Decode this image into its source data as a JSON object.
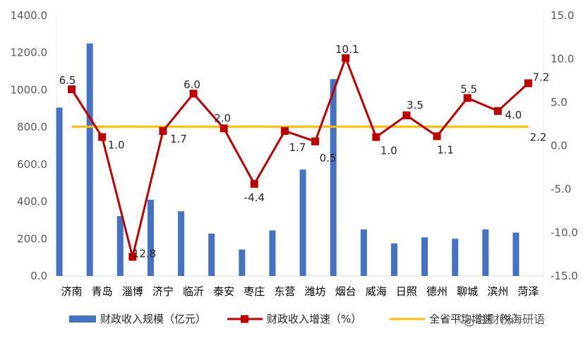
{
  "chart_data": {
    "type": "bar+line",
    "categories": [
      "济南",
      "青岛",
      "淄博",
      "济宁",
      "临沂",
      "泰安",
      "枣庄",
      "东营",
      "潍坊",
      "烟台",
      "威海",
      "日照",
      "德州",
      "聊城",
      "滨州",
      "菏泽"
    ],
    "series": [
      {
        "name": "财政收入规模（亿元）",
        "type": "bar",
        "axis": "left",
        "color": "#4472C4",
        "values": [
          905,
          1250,
          322,
          410,
          348,
          228,
          142,
          245,
          572,
          1058,
          250,
          175,
          208,
          200,
          250,
          233
        ]
      },
      {
        "name": "财政收入增速（%）",
        "type": "line",
        "axis": "right",
        "color": "#C00000",
        "values": [
          6.5,
          1.0,
          -12.8,
          1.7,
          6.0,
          2.0,
          -4.4,
          1.7,
          0.5,
          10.1,
          1.0,
          3.5,
          1.1,
          5.5,
          4.0,
          7.2
        ],
        "labels": [
          "6.5",
          "1.0",
          "-12.8",
          "1.7",
          "6.0",
          "2.0",
          "-4.4",
          "1.7",
          "0.5",
          "10.1",
          "1.0",
          "3.5",
          "1.1",
          "5.5",
          "4.0",
          "7.2"
        ]
      },
      {
        "name": "全省平均增速（%）",
        "type": "line",
        "axis": "right",
        "color": "#FFC000",
        "values": [
          2.2,
          2.2,
          2.2,
          2.2,
          2.2,
          2.2,
          2.2,
          2.2,
          2.2,
          2.2,
          2.2,
          2.2,
          2.2,
          2.2,
          2.2,
          2.2
        ],
        "end_label": "2.2"
      }
    ],
    "left_axis": {
      "min": 0,
      "max": 1400,
      "step": 200,
      "tick_labels": [
        "0.0",
        "200.0",
        "400.0",
        "600.0",
        "800.0",
        "1000.0",
        "1200.0",
        "1400.0"
      ]
    },
    "right_axis": {
      "min": -15,
      "max": 15,
      "step": 5,
      "tick_labels": [
        "-15.0",
        "-10.0",
        "-5.0",
        "0.0",
        "5.0",
        "10.0",
        "15.0"
      ]
    },
    "grid": false,
    "legend_position": "bottom"
  },
  "watermark": "兰财税海研语"
}
